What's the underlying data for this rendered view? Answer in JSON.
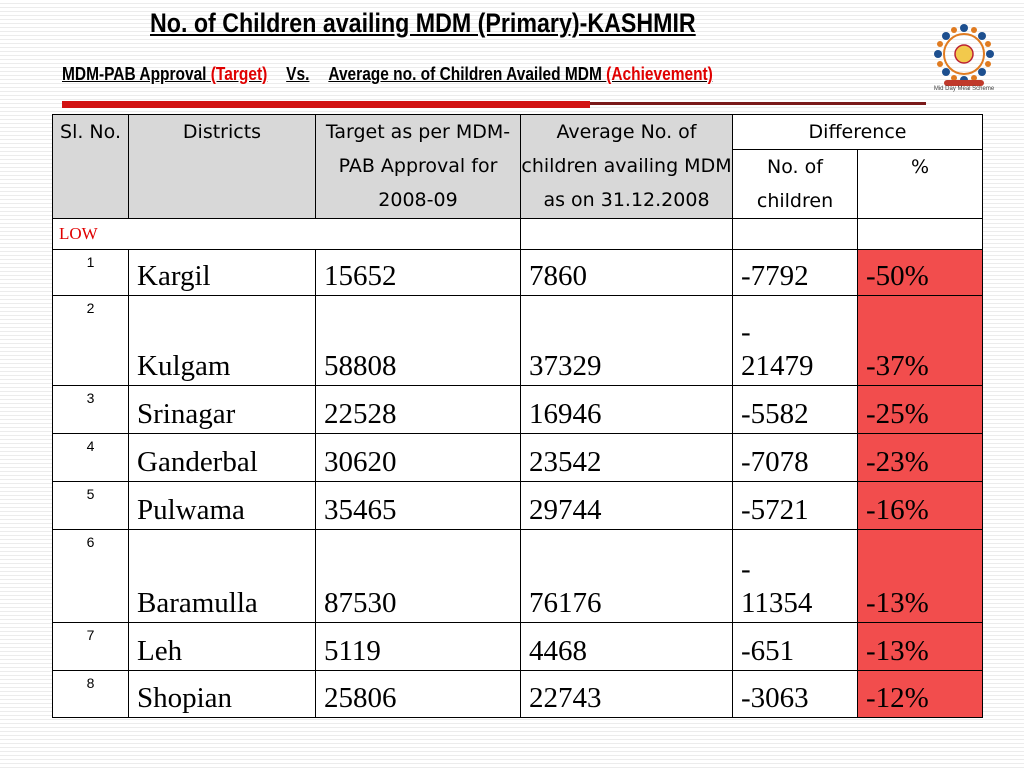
{
  "header": {
    "title": "No. of Children availing MDM (Primary)-KASHMIR",
    "subtitle_part1": "MDM-PAB Approval ",
    "subtitle_target": "(Target)",
    "subtitle_vs": "Vs.",
    "subtitle_part2": "Average no. of Children Availed MDM ",
    "subtitle_achievement": "(Achievement)"
  },
  "logo": {
    "icon": "mid-day-meal-logo",
    "caption": "Mid Day Meal Scheme"
  },
  "colors": {
    "accent_red": "#e00000",
    "rule_red": "#d21212",
    "percent_cell": "#f24d4d",
    "header_gray": "#d8d8d8"
  },
  "table": {
    "headers": {
      "sl_no": "Sl. No.",
      "districts": "Districts",
      "target": "Target as per MDM-PAB Approval for 2008-09",
      "average": "Average No. of children availing MDM as on 31.12.2008",
      "difference": "Difference",
      "diff_children": "No. of children",
      "diff_percent": "%"
    },
    "group_label": "LOW",
    "rows": [
      {
        "sl": "1",
        "district": "Kargil",
        "target": "15652",
        "average": "7860",
        "diff": "-7792",
        "pct": "-50%"
      },
      {
        "sl": "2",
        "district": "Kulgam",
        "target": "58808",
        "average": "37329",
        "diff_line1": "-",
        "diff_line2": "21479",
        "pct": "-37%"
      },
      {
        "sl": "3",
        "district": "Srinagar",
        "target": "22528",
        "average": "16946",
        "diff": "-5582",
        "pct": "-25%"
      },
      {
        "sl": "4",
        "district": "Ganderbal",
        "target": "30620",
        "average": "23542",
        "diff": "-7078",
        "pct": "-23%"
      },
      {
        "sl": "5",
        "district": "Pulwama",
        "target": "35465",
        "average": "29744",
        "diff": "-5721",
        "pct": "-16%"
      },
      {
        "sl": "6",
        "district": "Baramulla",
        "target": "87530",
        "average": "76176",
        "diff_line1": "-",
        "diff_line2": "11354",
        "pct": "-13%"
      },
      {
        "sl": "7",
        "district": "Leh",
        "target": "5119",
        "average": "4468",
        "diff": "-651",
        "pct": "-13%"
      },
      {
        "sl": "8",
        "district": "Shopian",
        "target": "25806",
        "average": "22743",
        "diff": "-3063",
        "pct": "-12%"
      }
    ]
  }
}
